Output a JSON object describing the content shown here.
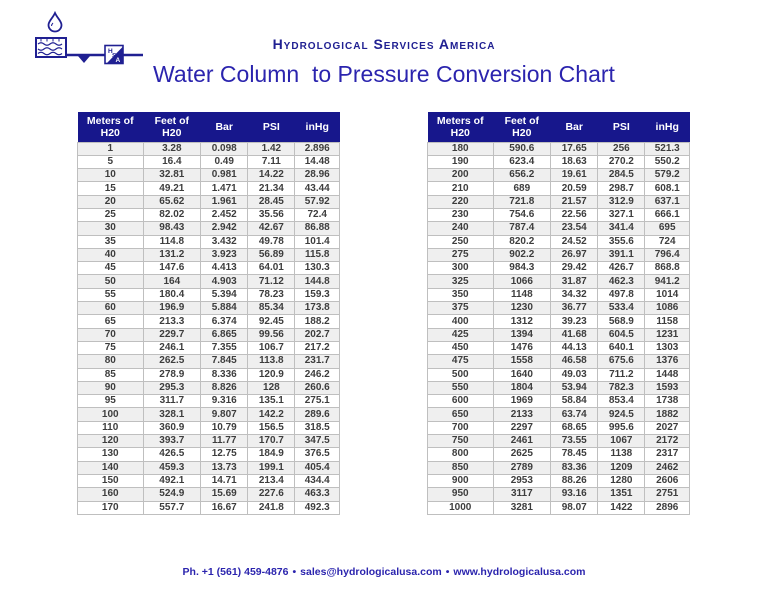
{
  "page": {
    "brand_name": "Hydrological Services America",
    "title": "Water Column  to Pressure Conversion Chart",
    "footer": {
      "phone": "Ph. +1 (561) 459-4876",
      "separator": "•",
      "email": "sales@hydrologicalusa.com",
      "website": "www.hydrologicalusa.com"
    }
  },
  "icons": {
    "logo": "hsa-water-drop-balance-logo"
  },
  "colors": {
    "header_bg": "#17178C",
    "accent_blue": "#2B24AE",
    "brand_navy": "#202092",
    "row_alt": "#EFEFEF",
    "grid": "#BFBFBF",
    "cell_text": "#3D3D3D"
  },
  "columns": [
    "Meters of H20",
    "Feet of H20",
    "Bar",
    "PSI",
    "inHg"
  ],
  "left_table": {
    "rows": [
      [
        "1",
        "3.28",
        "0.098",
        "1.42",
        "2.896"
      ],
      [
        "5",
        "16.4",
        "0.49",
        "7.11",
        "14.48"
      ],
      [
        "10",
        "32.81",
        "0.981",
        "14.22",
        "28.96"
      ],
      [
        "15",
        "49.21",
        "1.471",
        "21.34",
        "43.44"
      ],
      [
        "20",
        "65.62",
        "1.961",
        "28.45",
        "57.92"
      ],
      [
        "25",
        "82.02",
        "2.452",
        "35.56",
        "72.4"
      ],
      [
        "30",
        "98.43",
        "2.942",
        "42.67",
        "86.88"
      ],
      [
        "35",
        "114.8",
        "3.432",
        "49.78",
        "101.4"
      ],
      [
        "40",
        "131.2",
        "3.923",
        "56.89",
        "115.8"
      ],
      [
        "45",
        "147.6",
        "4.413",
        "64.01",
        "130.3"
      ],
      [
        "50",
        "164",
        "4.903",
        "71.12",
        "144.8"
      ],
      [
        "55",
        "180.4",
        "5.394",
        "78.23",
        "159.3"
      ],
      [
        "60",
        "196.9",
        "5.884",
        "85.34",
        "173.8"
      ],
      [
        "65",
        "213.3",
        "6.374",
        "92.45",
        "188.2"
      ],
      [
        "70",
        "229.7",
        "6.865",
        "99.56",
        "202.7"
      ],
      [
        "75",
        "246.1",
        "7.355",
        "106.7",
        "217.2"
      ],
      [
        "80",
        "262.5",
        "7.845",
        "113.8",
        "231.7"
      ],
      [
        "85",
        "278.9",
        "8.336",
        "120.9",
        "246.2"
      ],
      [
        "90",
        "295.3",
        "8.826",
        "128",
        "260.6"
      ],
      [
        "95",
        "311.7",
        "9.316",
        "135.1",
        "275.1"
      ],
      [
        "100",
        "328.1",
        "9.807",
        "142.2",
        "289.6"
      ],
      [
        "110",
        "360.9",
        "10.79",
        "156.5",
        "318.5"
      ],
      [
        "120",
        "393.7",
        "11.77",
        "170.7",
        "347.5"
      ],
      [
        "130",
        "426.5",
        "12.75",
        "184.9",
        "376.5"
      ],
      [
        "140",
        "459.3",
        "13.73",
        "199.1",
        "405.4"
      ],
      [
        "150",
        "492.1",
        "14.71",
        "213.4",
        "434.4"
      ],
      [
        "160",
        "524.9",
        "15.69",
        "227.6",
        "463.3"
      ],
      [
        "170",
        "557.7",
        "16.67",
        "241.8",
        "492.3"
      ]
    ]
  },
  "right_table": {
    "rows": [
      [
        "180",
        "590.6",
        "17.65",
        "256",
        "521.3"
      ],
      [
        "190",
        "623.4",
        "18.63",
        "270.2",
        "550.2"
      ],
      [
        "200",
        "656.2",
        "19.61",
        "284.5",
        "579.2"
      ],
      [
        "210",
        "689",
        "20.59",
        "298.7",
        "608.1"
      ],
      [
        "220",
        "721.8",
        "21.57",
        "312.9",
        "637.1"
      ],
      [
        "230",
        "754.6",
        "22.56",
        "327.1",
        "666.1"
      ],
      [
        "240",
        "787.4",
        "23.54",
        "341.4",
        "695"
      ],
      [
        "250",
        "820.2",
        "24.52",
        "355.6",
        "724"
      ],
      [
        "275",
        "902.2",
        "26.97",
        "391.1",
        "796.4"
      ],
      [
        "300",
        "984.3",
        "29.42",
        "426.7",
        "868.8"
      ],
      [
        "325",
        "1066",
        "31.87",
        "462.3",
        "941.2"
      ],
      [
        "350",
        "1148",
        "34.32",
        "497.8",
        "1014"
      ],
      [
        "375",
        "1230",
        "36.77",
        "533.4",
        "1086"
      ],
      [
        "400",
        "1312",
        "39.23",
        "568.9",
        "1158"
      ],
      [
        "425",
        "1394",
        "41.68",
        "604.5",
        "1231"
      ],
      [
        "450",
        "1476",
        "44.13",
        "640.1",
        "1303"
      ],
      [
        "475",
        "1558",
        "46.58",
        "675.6",
        "1376"
      ],
      [
        "500",
        "1640",
        "49.03",
        "711.2",
        "1448"
      ],
      [
        "550",
        "1804",
        "53.94",
        "782.3",
        "1593"
      ],
      [
        "600",
        "1969",
        "58.84",
        "853.4",
        "1738"
      ],
      [
        "650",
        "2133",
        "63.74",
        "924.5",
        "1882"
      ],
      [
        "700",
        "2297",
        "68.65",
        "995.6",
        "2027"
      ],
      [
        "750",
        "2461",
        "73.55",
        "1067",
        "2172"
      ],
      [
        "800",
        "2625",
        "78.45",
        "1138",
        "2317"
      ],
      [
        "850",
        "2789",
        "83.36",
        "1209",
        "2462"
      ],
      [
        "900",
        "2953",
        "88.26",
        "1280",
        "2606"
      ],
      [
        "950",
        "3117",
        "93.16",
        "1351",
        "2751"
      ],
      [
        "1000",
        "3281",
        "98.07",
        "1422",
        "2896"
      ]
    ]
  }
}
